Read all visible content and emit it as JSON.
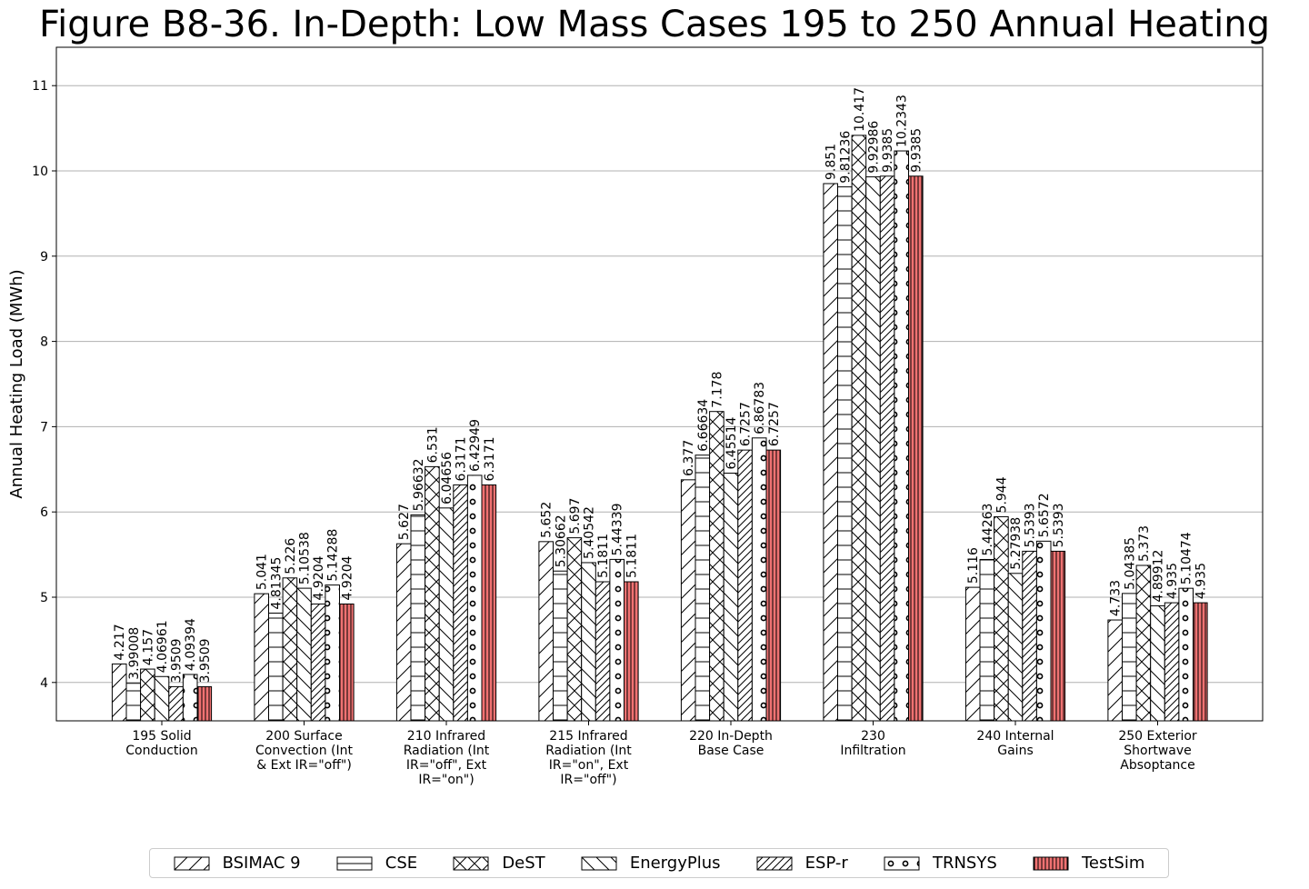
{
  "chart_data": {
    "type": "bar",
    "title": "Figure B8-36. In-Depth: Low Mass Cases 195 to 250 Annual Heating",
    "xlabel": "",
    "ylabel": "Annual Heating Load (MWh)",
    "ylim": [
      3.55,
      11.45
    ],
    "yticks": [
      "4",
      "5",
      "6",
      "7",
      "8",
      "9",
      "10",
      "11"
    ],
    "grid": "y-major",
    "legend_position": "bottom-center",
    "categories": [
      "195 Solid Conduction",
      "200 Surface Convection (Int & Ext IR=\"off\")",
      "210 Infrared Radiation (Int IR=\"off\", Ext IR=\"on\")",
      "215 Infrared Radiation (Int IR=\"on\", Ext IR=\"off\")",
      "220 In-Depth Base Case",
      "230 Infiltration",
      "240 Internal Gains",
      "250 Exterior Shortwave Absoptance"
    ],
    "category_lines": [
      [
        "195 Solid",
        "Conduction"
      ],
      [
        "200 Surface",
        "Convection (Int",
        "& Ext IR=\"off\")"
      ],
      [
        "210 Infrared",
        "Radiation (Int",
        "IR=\"off\", Ext",
        "IR=\"on\")"
      ],
      [
        "215 Infrared",
        "Radiation (Int",
        "IR=\"on\", Ext",
        "IR=\"off\")"
      ],
      [
        "220 In-Depth",
        "Base Case"
      ],
      [
        "230",
        "Infiltration"
      ],
      [
        "240 Internal",
        "Gains"
      ],
      [
        "250 Exterior",
        "Shortwave",
        "Absoptance"
      ]
    ],
    "series": [
      {
        "name": "BSIMAC 9",
        "hatch": "fwd",
        "color": "#ffffff",
        "values": [
          4.217,
          5.041,
          5.627,
          5.652,
          6.377,
          9.851,
          5.116,
          4.733
        ],
        "labels": [
          "4.217",
          "5.041",
          "5.627",
          "5.652",
          "6.377",
          "9.851",
          "5.116",
          "4.733"
        ]
      },
      {
        "name": "CSE",
        "hatch": "horiz",
        "color": "#ffffff",
        "values": [
          3.99008,
          4.81345,
          5.96632,
          5.30662,
          6.66634,
          9.81236,
          5.44263,
          5.04385
        ],
        "labels": [
          "3.99008",
          "4.81345",
          "5.96632",
          "5.30662",
          "6.66634",
          "9.81236",
          "5.44263",
          "5.04385"
        ]
      },
      {
        "name": "DeST",
        "hatch": "cross",
        "color": "#ffffff",
        "values": [
          4.157,
          5.226,
          6.531,
          5.697,
          7.178,
          10.417,
          5.944,
          5.373
        ],
        "labels": [
          "4.157",
          "5.226",
          "6.531",
          "5.697",
          "7.178",
          "10.417",
          "5.944",
          "5.373"
        ]
      },
      {
        "name": "EnergyPlus",
        "hatch": "back",
        "color": "#ffffff",
        "values": [
          4.06961,
          5.10538,
          6.04656,
          5.40542,
          6.45514,
          9.92986,
          5.27938,
          4.89912
        ],
        "labels": [
          "4.06961",
          "5.10538",
          "6.04656",
          "5.40542",
          "6.45514",
          "9.92986",
          "5.27938",
          "4.89912"
        ]
      },
      {
        "name": "ESP-r",
        "hatch": "dense",
        "color": "#ffffff",
        "values": [
          3.9509,
          4.9204,
          6.3171,
          5.1811,
          6.7257,
          9.9385,
          5.5393,
          4.935
        ],
        "labels": [
          "3.9509",
          "4.9204",
          "6.3171",
          "5.1811",
          "6.7257",
          "9.9385",
          "5.5393",
          "4.935"
        ]
      },
      {
        "name": "TRNSYS",
        "hatch": "circle",
        "color": "#ffffff",
        "values": [
          4.09394,
          5.14288,
          6.42949,
          5.44339,
          6.86783,
          10.2343,
          5.6572,
          5.10474
        ],
        "labels": [
          "4.09394",
          "5.14288",
          "6.42949",
          "5.44339",
          "6.86783",
          "10.2343",
          "5.6572",
          "5.10474"
        ]
      },
      {
        "name": "TestSim",
        "hatch": "vert",
        "color": "#f07272",
        "values": [
          3.9509,
          4.9204,
          6.3171,
          5.1811,
          6.7257,
          9.9385,
          5.5393,
          4.935
        ],
        "labels": [
          "3.9509",
          "4.9204",
          "6.3171",
          "5.1811",
          "6.7257",
          "9.9385",
          "5.5393",
          "4.935"
        ]
      }
    ]
  }
}
